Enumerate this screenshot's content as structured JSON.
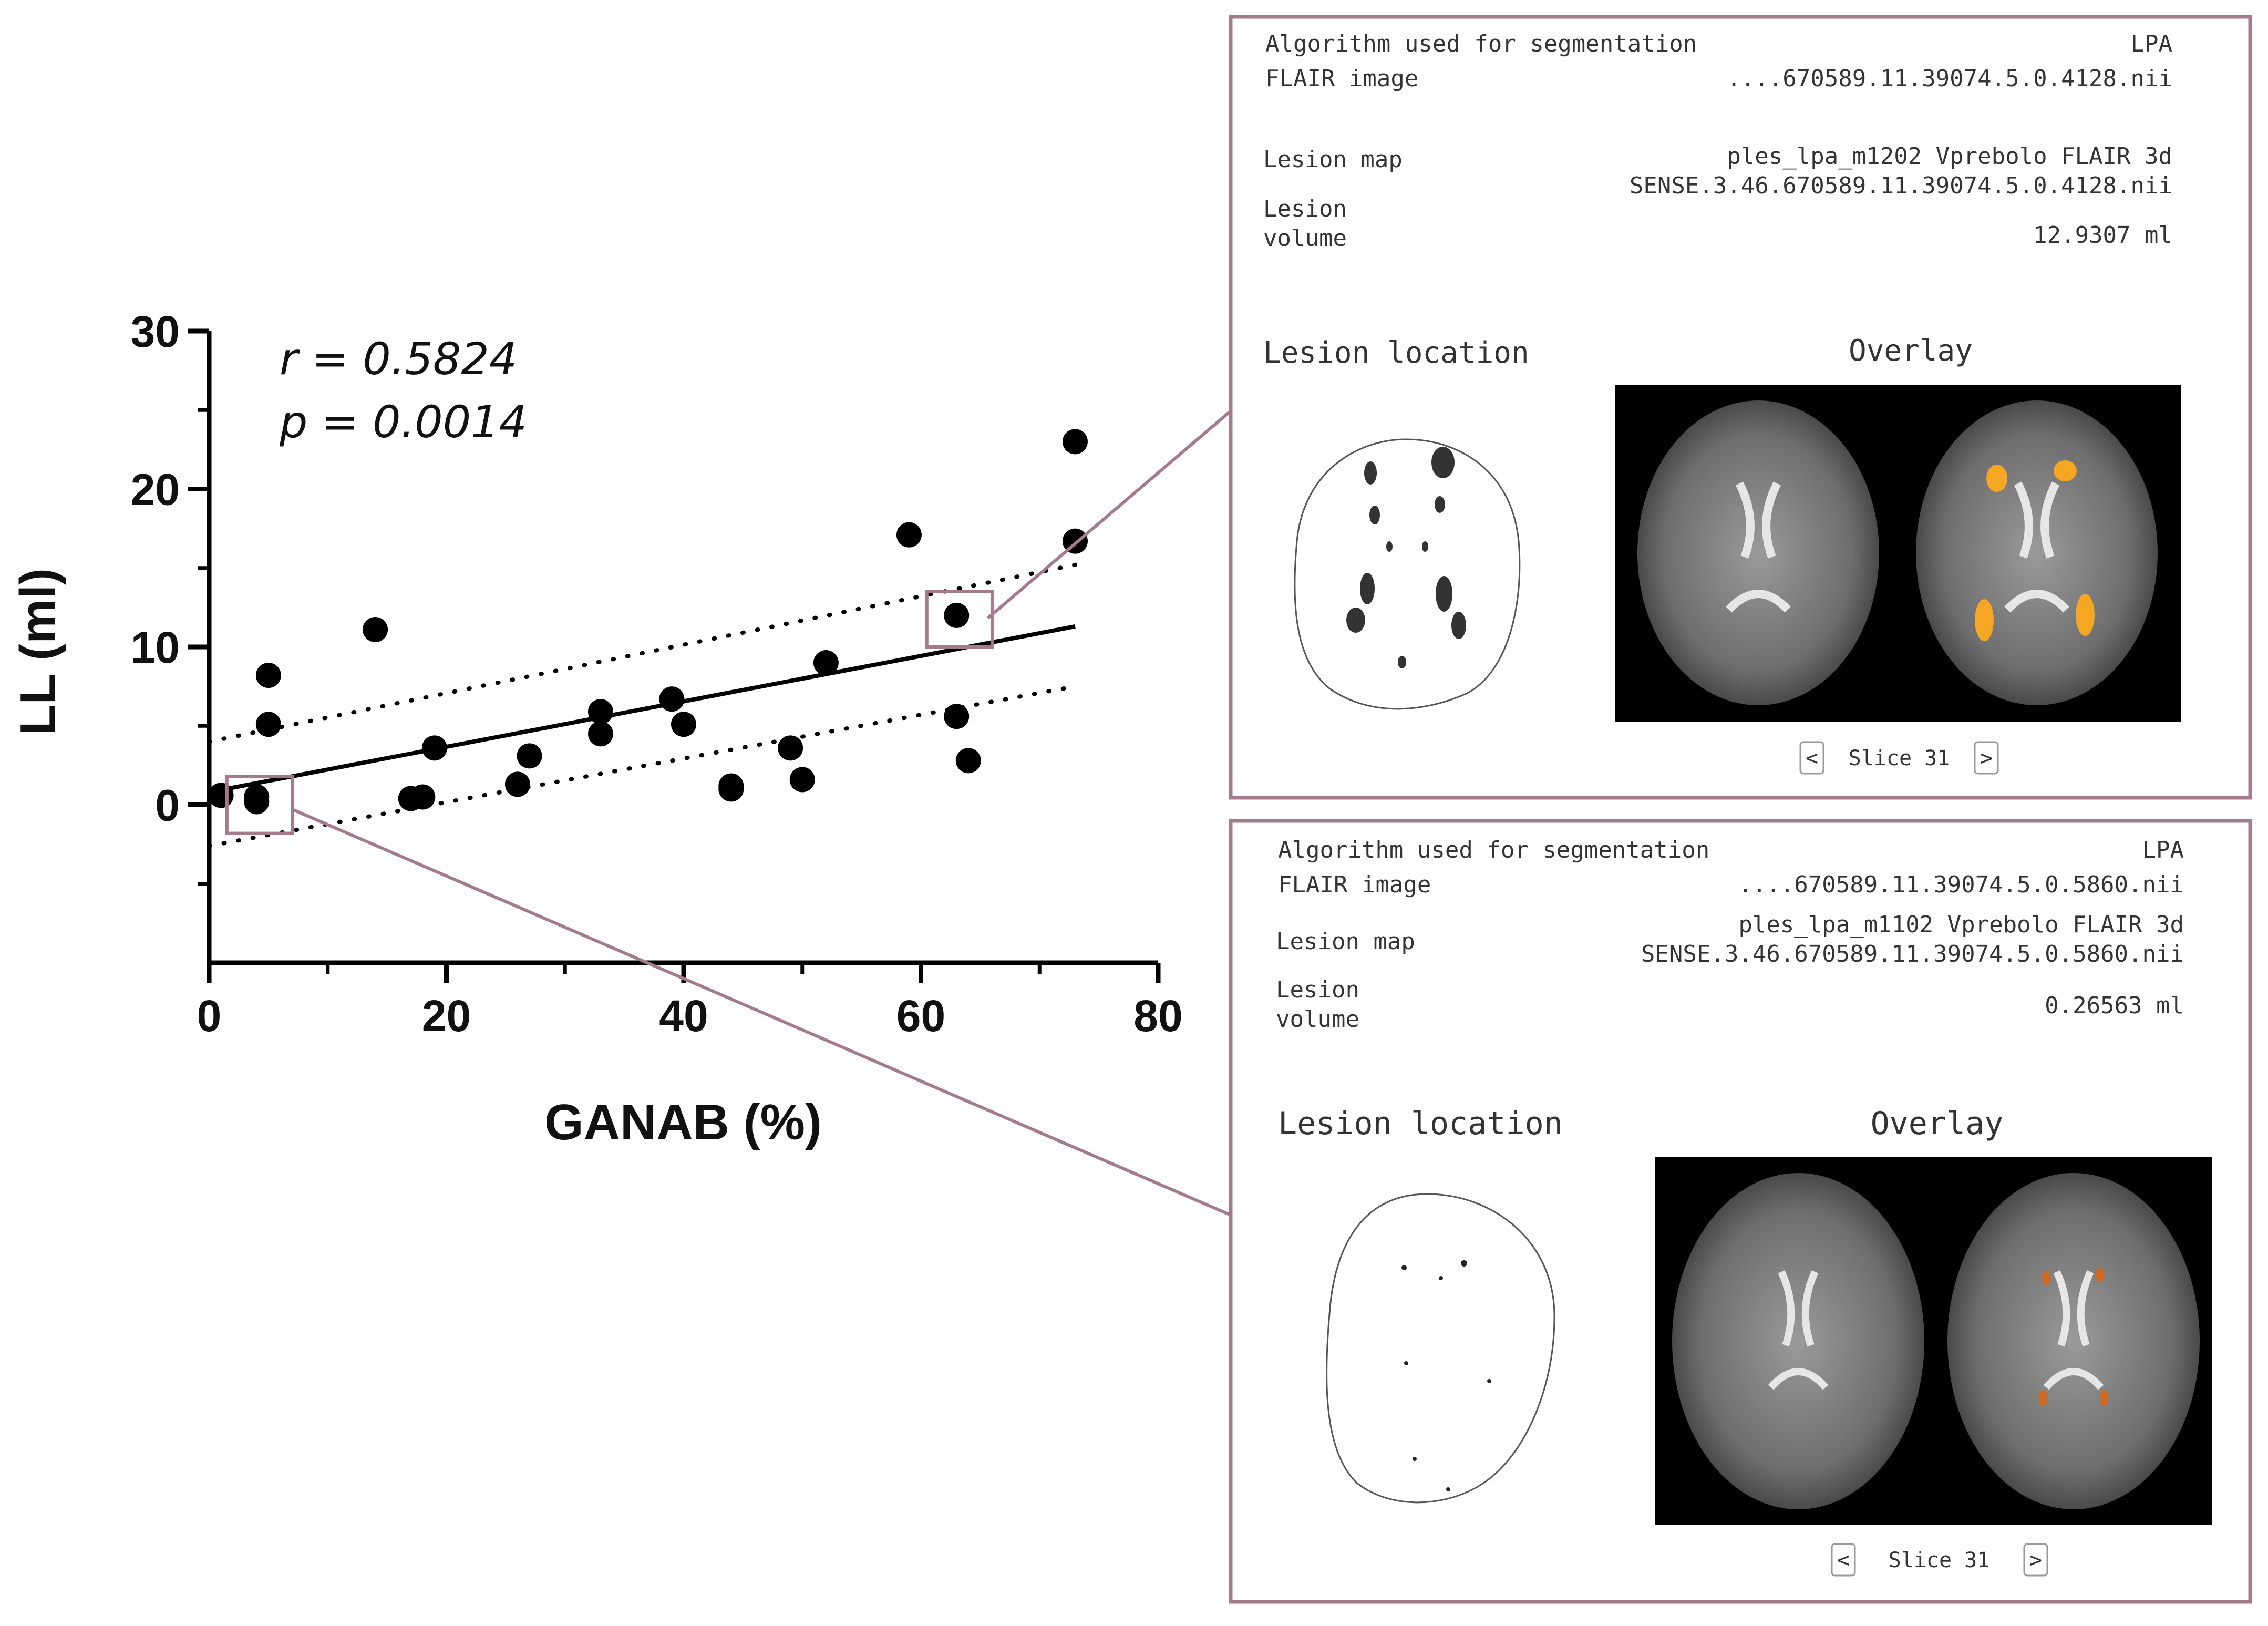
{
  "chart_data": {
    "type": "scatter",
    "xlabel": "GANAB (%)",
    "ylabel": "LL (ml)",
    "xlim": [
      0,
      80
    ],
    "ylim": [
      -10,
      30
    ],
    "x_ticks": [
      "0",
      "20",
      "40",
      "60",
      "80"
    ],
    "y_ticks": [
      "0",
      "10",
      "20",
      "30"
    ],
    "annotations": [
      "r = 0.5824",
      "p = 0.0014"
    ],
    "points": [
      [
        1,
        0.6
      ],
      [
        4,
        0.5
      ],
      [
        4,
        0.2
      ],
      [
        5,
        8.2
      ],
      [
        5,
        5.1
      ],
      [
        14,
        11.1
      ],
      [
        17,
        0.4
      ],
      [
        18,
        0.5
      ],
      [
        19,
        3.6
      ],
      [
        26,
        1.3
      ],
      [
        27,
        3.1
      ],
      [
        33,
        5.9
      ],
      [
        33,
        4.5
      ],
      [
        39,
        6.7
      ],
      [
        40,
        5.1
      ],
      [
        44,
        1.2
      ],
      [
        44,
        1.0
      ],
      [
        49,
        3.6
      ],
      [
        50,
        1.6
      ],
      [
        52,
        9.0
      ],
      [
        59,
        17.1
      ],
      [
        63,
        12.0
      ],
      [
        63,
        5.6
      ],
      [
        64,
        2.8
      ],
      [
        73,
        23.0
      ],
      [
        73,
        16.7
      ]
    ],
    "regression": {
      "x": [
        0,
        73
      ],
      "y": [
        0.8,
        11.3
      ]
    },
    "ci_upper": {
      "x": [
        0,
        73
      ],
      "y": [
        4.0,
        15.2
      ]
    },
    "ci_lower": {
      "x": [
        0,
        73
      ],
      "y": [
        -2.6,
        7.5
      ]
    },
    "highlight_boxes": [
      {
        "x": [
          1.5,
          7
        ],
        "y": [
          -1.8,
          1.8
        ]
      },
      {
        "x": [
          60.5,
          66
        ],
        "y": [
          10.0,
          13.5
        ]
      }
    ]
  },
  "panels": {
    "top": {
      "algorithm_label": "Algorithm used for segmentation",
      "algorithm_value": "LPA",
      "flair_label": "FLAIR image",
      "flair_value": "....670589.11.39074.5.0.4128.nii",
      "lesion_map_label": "Lesion map",
      "lesion_map_value_line1": "ples_lpa_m1202 Vprebolo FLAIR 3d",
      "lesion_map_value_line2": "SENSE.3.46.670589.11.39074.5.0.4128.nii",
      "lesion_volume_label_line1": "Lesion",
      "lesion_volume_label_line2": "volume",
      "lesion_volume_value": "12.9307 ml",
      "lesion_location_title": "Lesion location",
      "overlay_title": "Overlay",
      "prev_label": "<",
      "slice_label": "Slice 31",
      "next_label": ">"
    },
    "bottom": {
      "algorithm_label": "Algorithm used for segmentation",
      "algorithm_value": "LPA",
      "flair_label": "FLAIR image",
      "flair_value": "....670589.11.39074.5.0.5860.nii",
      "lesion_map_label": "Lesion map",
      "lesion_map_value_line1": "ples_lpa_m1102 Vprebolo FLAIR 3d",
      "lesion_map_value_line2": "SENSE.3.46.670589.11.39074.5.0.5860.nii",
      "lesion_volume_label_line1": "Lesion",
      "lesion_volume_label_line2": "volume",
      "lesion_volume_value": "0.26563 ml",
      "lesion_location_title": "Lesion location",
      "overlay_title": "Overlay",
      "prev_label": "<",
      "slice_label": "Slice 31",
      "next_label": ">"
    }
  },
  "colors": {
    "accent_box": "#a57b8b",
    "marker": "#000000",
    "mri_background": "#000000",
    "lesion_highlight": "#f5a623"
  }
}
